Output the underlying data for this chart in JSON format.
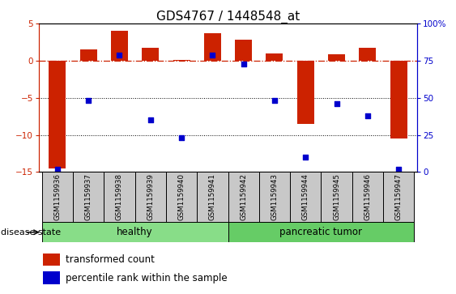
{
  "title": "GDS4767 / 1448548_at",
  "samples": [
    "GSM1159936",
    "GSM1159937",
    "GSM1159938",
    "GSM1159939",
    "GSM1159940",
    "GSM1159941",
    "GSM1159942",
    "GSM1159943",
    "GSM1159944",
    "GSM1159945",
    "GSM1159946",
    "GSM1159947"
  ],
  "bar_values": [
    -14.5,
    1.5,
    4.0,
    1.7,
    0.1,
    3.7,
    2.8,
    1.0,
    -8.5,
    0.9,
    1.7,
    -10.5
  ],
  "blue_percentile": [
    2,
    48,
    79,
    35,
    23,
    79,
    73,
    48,
    10,
    46,
    38,
    2
  ],
  "ylim_left": [
    -15,
    5
  ],
  "ylim_right": [
    0,
    100
  ],
  "yticks_left": [
    -15,
    -10,
    -5,
    0,
    5
  ],
  "yticks_right": [
    0,
    25,
    50,
    75,
    100
  ],
  "hline_dashed": 0,
  "hline_dotted1": -5,
  "hline_dotted2": -10,
  "bar_color": "#cc2200",
  "blue_color": "#0000cc",
  "healthy_color": "#88dd88",
  "tumor_color": "#66cc66",
  "healthy_label": "healthy",
  "tumor_label": "pancreatic tumor",
  "disease_state_label": "disease state",
  "legend_bar_label": "transformed count",
  "legend_blue_label": "percentile rank within the sample",
  "title_fontsize": 11,
  "tick_fontsize": 7.5,
  "label_fontsize": 8.5,
  "sample_fontsize": 6.2,
  "n_healthy": 6,
  "n_tumor": 6
}
